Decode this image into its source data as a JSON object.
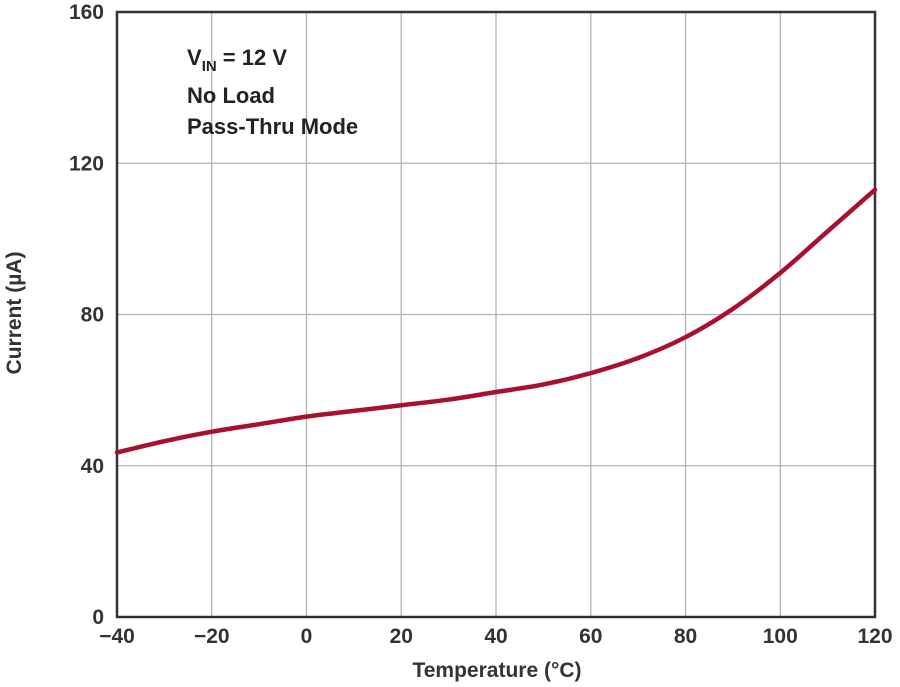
{
  "chart_data": {
    "type": "line",
    "xlabel": "Temperature (°C)",
    "ylabel": "Current (µA)",
    "xlim": [
      -40,
      120
    ],
    "ylim": [
      0,
      160
    ],
    "x_ticks": [
      -40,
      -20,
      0,
      20,
      40,
      60,
      80,
      100,
      120
    ],
    "y_ticks": [
      0,
      40,
      80,
      120,
      160
    ],
    "x_tick_labels": [
      "−40",
      "−20",
      "0",
      "20",
      "40",
      "60",
      "80",
      "100",
      "120"
    ],
    "y_tick_labels": [
      "0",
      "40",
      "80",
      "120",
      "160"
    ],
    "grid": true,
    "annotations": {
      "vin_prefix": "V",
      "vin_sub": "IN",
      "vin_value": " = 12 V",
      "line2": "No Load",
      "line3": "Pass-Thru Mode"
    },
    "series": [
      {
        "color": "#a8102e",
        "x": [
          -40,
          -30,
          -20,
          -10,
          0,
          10,
          20,
          30,
          40,
          50,
          60,
          70,
          80,
          90,
          100,
          110,
          120
        ],
        "y": [
          43.5,
          46.5,
          49,
          51,
          53,
          54.5,
          56,
          57.5,
          59.5,
          61.5,
          64.5,
          68.5,
          74,
          81.5,
          91,
          102,
          113
        ]
      }
    ]
  }
}
